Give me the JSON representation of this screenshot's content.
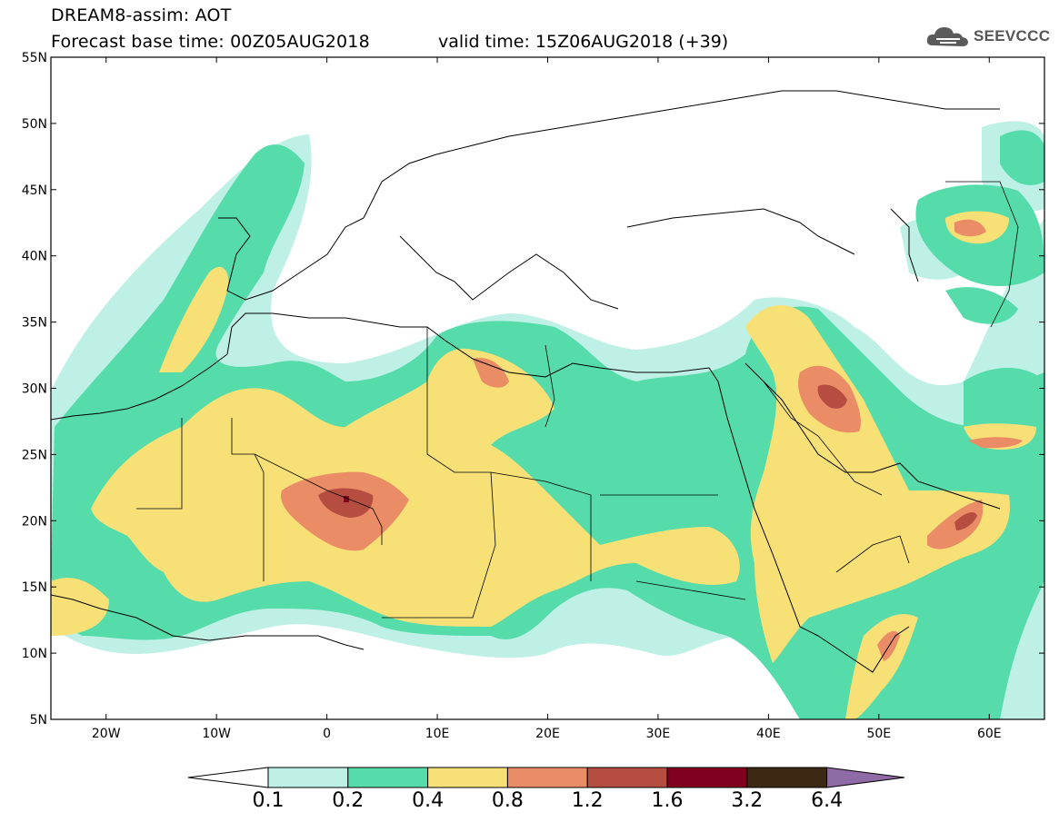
{
  "header": {
    "title_line1": "DREAM8-assim: AOT",
    "title_line2": "Forecast base time: 00Z05AUG2018",
    "valid_text": "valid time: 15Z06AUG2018 (+39)",
    "logo_text": "SEEVCCC"
  },
  "map": {
    "lat_labels": [
      "55N",
      "50N",
      "45N",
      "40N",
      "35N",
      "30N",
      "25N",
      "20N",
      "15N",
      "10N",
      "5N"
    ],
    "lon_labels": [
      "20W",
      "10W",
      "0",
      "10E",
      "20E",
      "30E",
      "40E",
      "50E",
      "60E"
    ],
    "lat_range": [
      5,
      55
    ],
    "lon_range": [
      -25,
      65
    ]
  },
  "legend": {
    "thresholds": [
      "0.1",
      "0.2",
      "0.4",
      "0.8",
      "1.2",
      "1.6",
      "3.2",
      "6.4"
    ],
    "colors": [
      "#ffffff",
      "#bff0e6",
      "#55dcaa",
      "#f7e176",
      "#ea8d66",
      "#b54e40",
      "#800020",
      "#3d2814",
      "#8e6aa6"
    ]
  },
  "colors": {
    "c01": "#bff0e6",
    "c02": "#55dcaa",
    "c04": "#f7e176",
    "c08": "#ea8d66",
    "c12": "#b54e40",
    "c16": "#800020",
    "c32": "#3d2814"
  }
}
